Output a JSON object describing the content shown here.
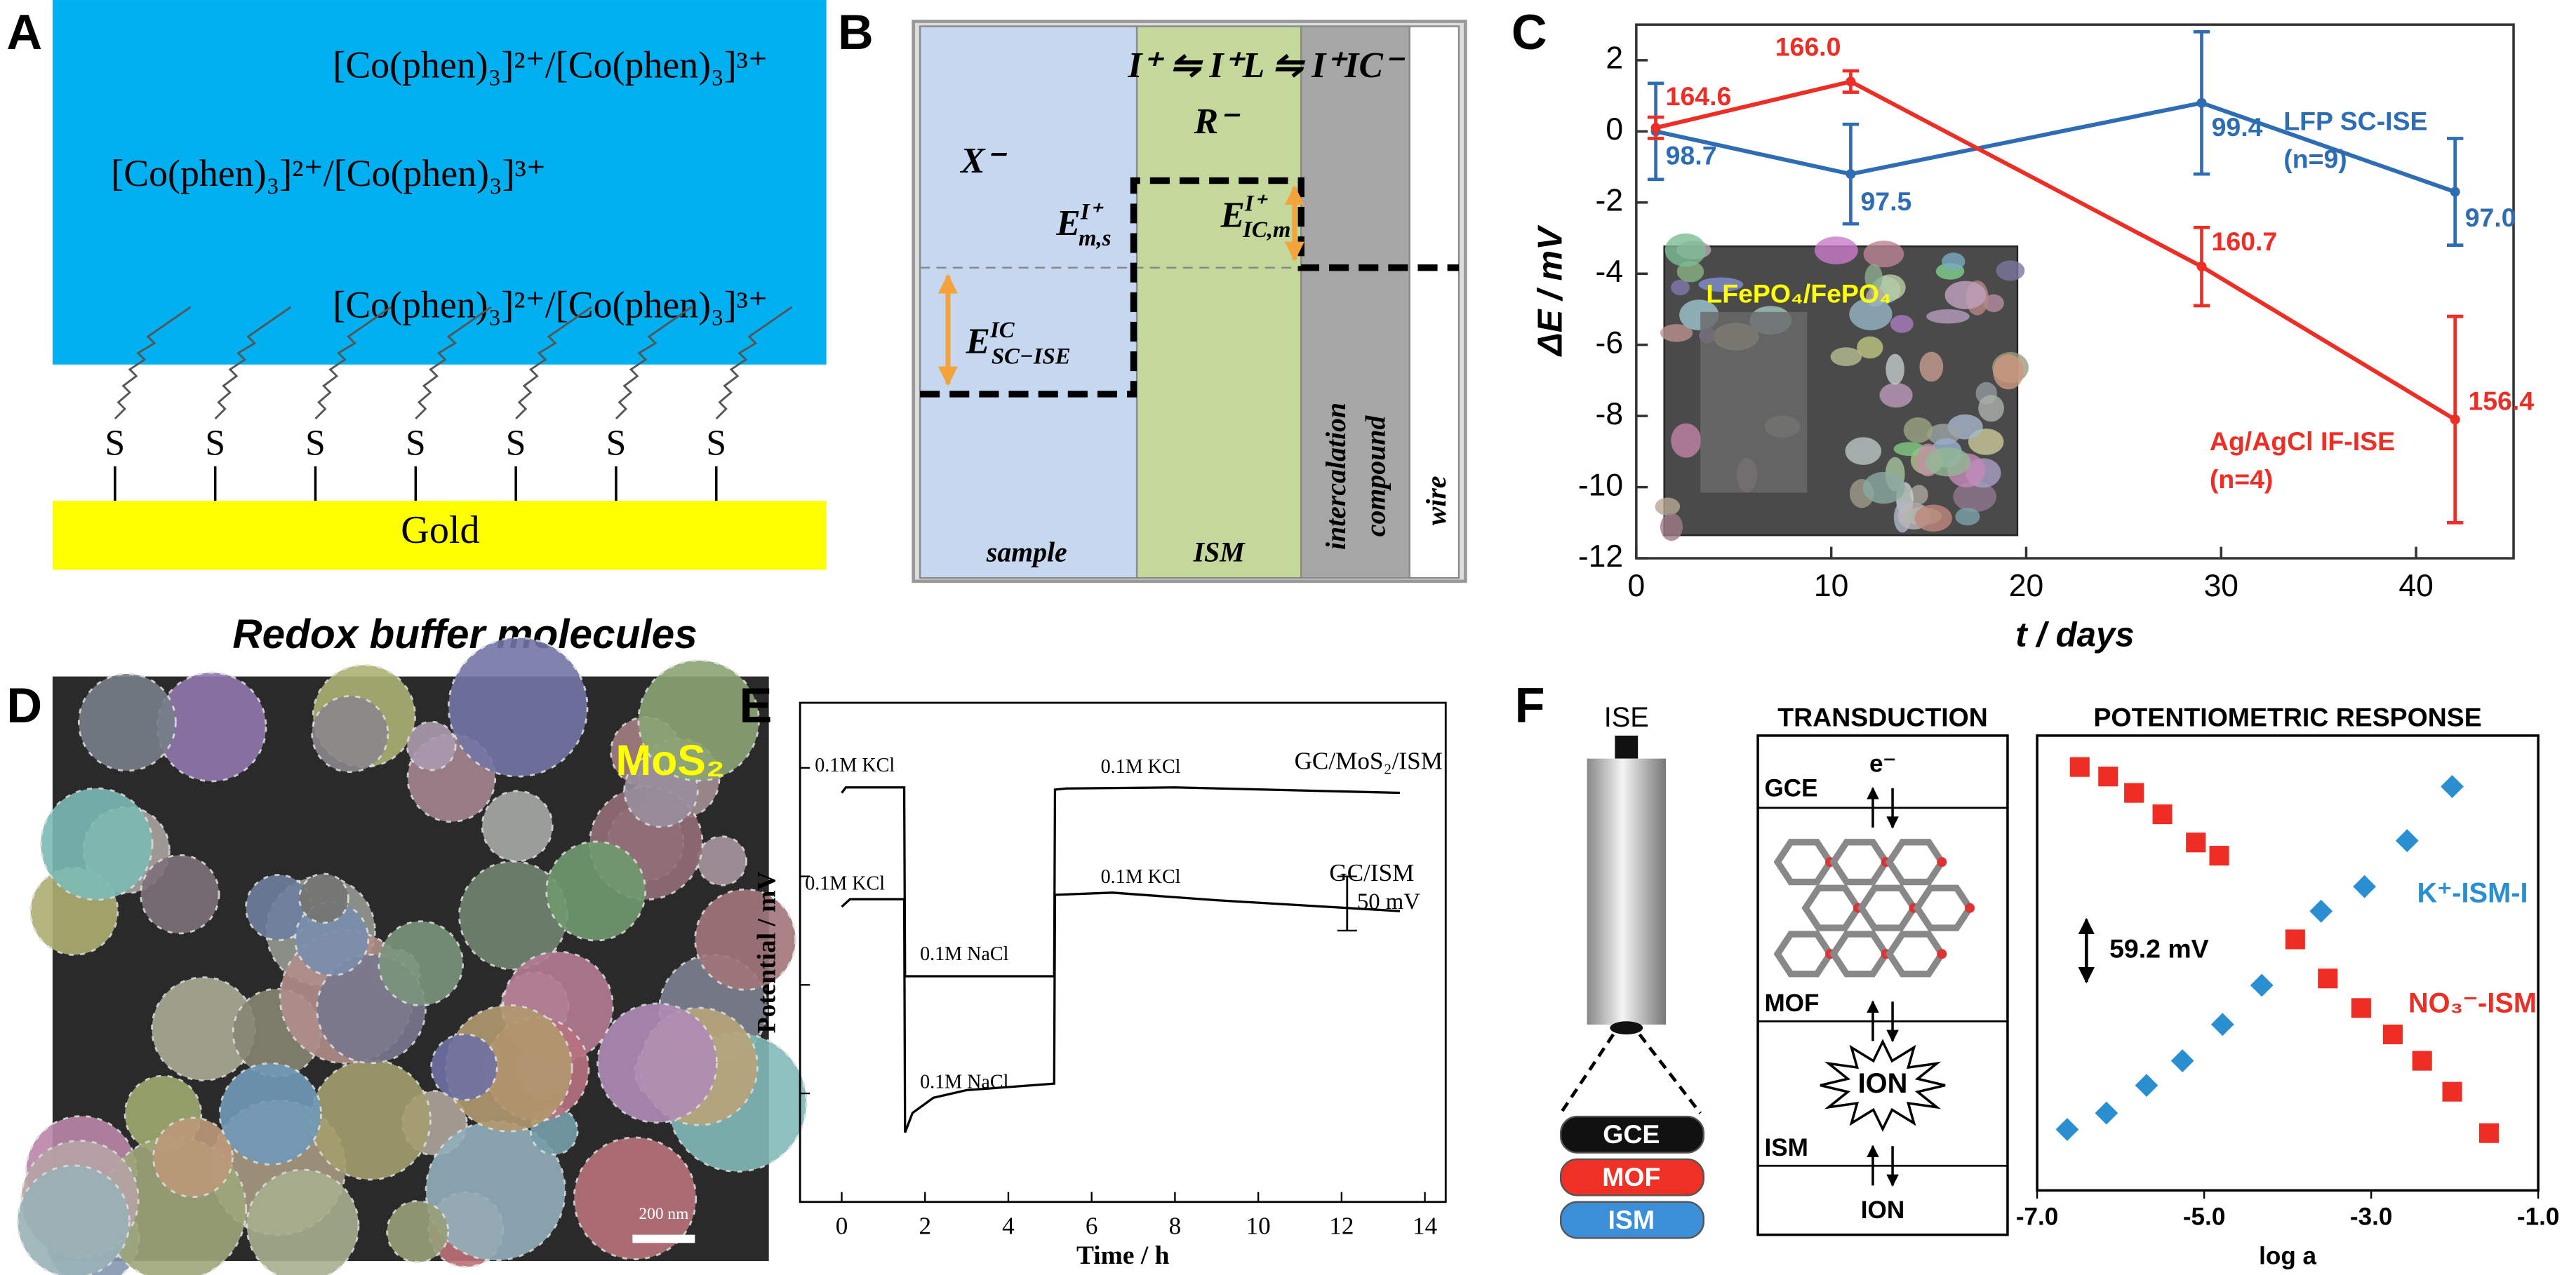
{
  "panel_a": {
    "label": "A",
    "couples": [
      "[Co(phen)₃]²⁺/[Co(phen)₃]³⁺",
      "[Co(phen)₃]²⁺/[Co(phen)₃]³⁺",
      "[Co(phen)₃]²⁺/[Co(phen)₃]³⁺"
    ],
    "anchor": "S",
    "substrate": "Gold",
    "caption": "Redox buffer molecules"
  },
  "panel_b": {
    "label": "B",
    "equilibrium": "I⁺ ⇋ I⁺L ⇋ I⁺IC⁻",
    "ion_membrane": "R⁻",
    "ion_sample": "X⁻",
    "potentials": [
      {
        "base": "E",
        "sup": "I⁺",
        "sub": "m,s"
      },
      {
        "base": "E",
        "sup": "I⁺",
        "sub": "IC,m"
      },
      {
        "base": "E",
        "sup": "IC",
        "sub": "SC−ISE"
      }
    ],
    "regions": [
      "sample",
      "ISM",
      "intercalation compound",
      "wire"
    ]
  },
  "chart_c": {
    "type": "line",
    "label": "C",
    "ylabel": "ΔE / mV",
    "xlabel": "t / days",
    "inset_label": "LFePO₄/FePO₄",
    "xlim": [
      0,
      45
    ],
    "xticks": [
      0,
      10,
      20,
      30,
      40
    ],
    "ylim": [
      -12,
      3
    ],
    "yticks": [
      -12,
      -10,
      -8,
      -6,
      -4,
      -2,
      0,
      2
    ],
    "series": [
      {
        "name": "LFP SC-ISE",
        "count": "(n=9)",
        "color": "#2e6db4",
        "x": [
          1,
          11,
          29,
          42
        ],
        "values": [
          0,
          -1.2,
          0.8,
          -1.7
        ],
        "errors": [
          1.35,
          1.4,
          2.0,
          1.5
        ],
        "point_labels": [
          "98.7",
          "97.5",
          "99.4",
          "97.0"
        ]
      },
      {
        "name": "Ag/AgCl IF-ISE",
        "count": "(n=4)",
        "color": "#ee2d24",
        "x": [
          1,
          11,
          29,
          42
        ],
        "values": [
          0.1,
          1.4,
          -3.8,
          -8.1
        ],
        "errors": [
          0.3,
          0.3,
          1.1,
          2.9
        ],
        "point_labels": [
          "164.6",
          "166.0",
          "160.7",
          "156.4"
        ]
      }
    ]
  },
  "panel_d": {
    "label": "D",
    "material": "MoS₂",
    "scale_bar": "200 nm"
  },
  "chart_e": {
    "type": "line",
    "label": "E",
    "xlabel": "Time / h",
    "ylabel": "Potential / mV",
    "xlim": [
      -1,
      14.5
    ],
    "xticks": [
      0,
      2,
      4,
      6,
      8,
      10,
      12,
      14
    ],
    "ylim": [
      0,
      460
    ],
    "ytick_marks": [
      0,
      100,
      200,
      300,
      400
    ],
    "series": [
      {
        "name": "GC/MoS₂/ISM",
        "color": "#000000",
        "x": [
          0,
          0.1,
          1.5,
          1.52,
          3,
          5.1,
          5.12,
          5.4,
          8,
          13.4
        ],
        "values": [
          377,
          382,
          382,
          208,
          208,
          208,
          380,
          381,
          382,
          377
        ]
      },
      {
        "name": "GC/ISM",
        "color": "#000000",
        "x": [
          0,
          0.2,
          1.5,
          1.52,
          1.7,
          2.2,
          3,
          5.1,
          5.12,
          6.5,
          9,
          13.4
        ],
        "values": [
          272,
          279,
          279,
          64,
          82,
          96,
          103,
          109,
          283,
          285,
          278,
          268
        ]
      }
    ],
    "annotations": [
      "0.1M KCl",
      "0.1M KCl",
      "0.1M KCl",
      "0.1M KCl",
      "0.1M NaCl",
      "0.1M NaCl"
    ],
    "scale_bar": "50 mV",
    "scale_bar_value": 50
  },
  "panel_f": {
    "label": "F",
    "electrode": "ISE",
    "layers": [
      "GCE",
      "MOF",
      "ISM"
    ],
    "transduction_title": "TRANSDUCTION",
    "electron": "e⁻",
    "ion": "ION",
    "chart": {
      "type": "scatter",
      "title": "POTENTIOMETRIC RESPONSE",
      "xlabel": "log a",
      "xlim": [
        -7,
        -1
      ],
      "ylim": [
        0,
        100
      ],
      "xticks": [
        {
          "value": -7,
          "label": "-7.0"
        },
        {
          "value": -5,
          "label": "-5.0"
        },
        {
          "value": -3,
          "label": "-3.0"
        },
        {
          "value": -1,
          "label": "-1.0"
        }
      ],
      "slope_label": "59.2 mV",
      "series": [
        {
          "name": "K⁺-ISM-I",
          "color": "#2a8fd0",
          "marker": "diamond",
          "x": [
            -6.64,
            -6.17,
            -5.69,
            -5.26,
            -4.78,
            -4.31,
            -3.6,
            -3.08,
            -2.57,
            -2.03
          ],
          "values": [
            13.4,
            17,
            23.1,
            28.5,
            36.5,
            45.1,
            61.4,
            66.8,
            76.9,
            88.8
          ]
        },
        {
          "name": "NO₃⁻-ISM",
          "color": "#ee2d24",
          "marker": "square",
          "x": [
            -6.49,
            -6.15,
            -5.84,
            -5.5,
            -5.1,
            -4.82,
            -3.91,
            -3.52,
            -3.12,
            -2.74,
            -2.39,
            -2.03,
            -1.59
          ],
          "values": [
            93.1,
            91,
            87.4,
            82.7,
            76.5,
            73.6,
            55.2,
            46.6,
            40.1,
            34.3,
            28.5,
            21.7,
            12.6
          ]
        }
      ]
    }
  }
}
